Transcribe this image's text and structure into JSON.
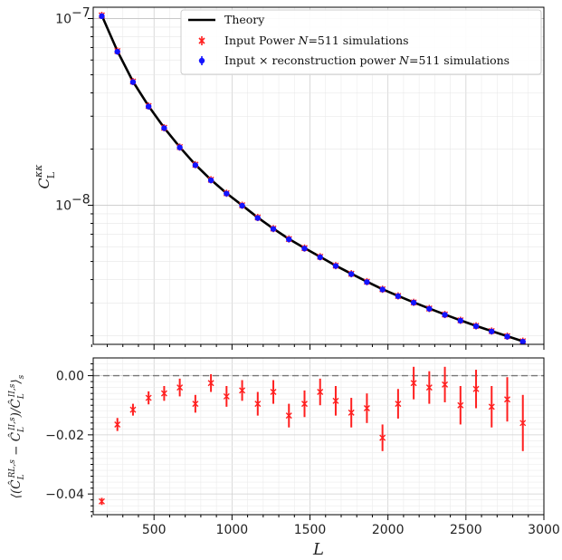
{
  "chart_data": [
    {
      "type": "scatter",
      "panel": "top",
      "yscale": "log",
      "ylim": [
        1.8e-09,
        1.15e-07
      ],
      "xlim": [
        110,
        3000
      ],
      "ylabel": "C_L^{\\kappa\\kappa}",
      "yticks": [
        {
          "value": 1e-07,
          "label": "10",
          "exp": "−7"
        },
        {
          "value": 1e-08,
          "label": "10",
          "exp": "−8"
        }
      ],
      "grid": true,
      "legend": {
        "position": "top-right",
        "entries": [
          {
            "label": "Theory",
            "style": "line",
            "color": "#000000"
          },
          {
            "label_pre": "Input Power ",
            "label_var": "N",
            "label_post": "=511 simulations",
            "style": "errorbar",
            "color": "#ff1f1f"
          },
          {
            "label_pre": "Input × reconstruction power ",
            "label_var": "N",
            "label_post": "=511 simulations",
            "style": "errorbar",
            "color": "#1414ff"
          }
        ]
      },
      "theory": {
        "x": [
          165,
          265,
          365,
          465,
          565,
          665,
          765,
          865,
          965,
          1065,
          1165,
          1265,
          1365,
          1465,
          1565,
          1665,
          1765,
          1865,
          1965,
          2065,
          2165,
          2265,
          2365,
          2465,
          2565,
          2665,
          2765,
          2865
        ],
        "y": [
          1.04e-07,
          6.7e-08,
          4.6e-08,
          3.4e-08,
          2.6e-08,
          2.05e-08,
          1.65e-08,
          1.37e-08,
          1.16e-08,
          1e-08,
          8.6e-09,
          7.5e-09,
          6.6e-09,
          5.9e-09,
          5.3e-09,
          4.75e-09,
          4.3e-09,
          3.9e-09,
          3.55e-09,
          3.27e-09,
          3.02e-09,
          2.8e-09,
          2.6e-09,
          2.42e-09,
          2.26e-09,
          2.12e-09,
          1.99e-09,
          1.87e-09
        ]
      },
      "series": [
        {
          "name": "Input Power N=511 simulations",
          "color": "#ff1f1f",
          "x": [
            165,
            265,
            365,
            465,
            565,
            665,
            765,
            865,
            965,
            1065,
            1165,
            1265,
            1365,
            1465,
            1565,
            1665,
            1765,
            1865,
            1965,
            2065,
            2165,
            2265,
            2365,
            2465,
            2565,
            2665,
            2765,
            2865
          ],
          "y": [
            1.04e-07,
            6.7e-08,
            4.6e-08,
            3.4e-08,
            2.6e-08,
            2.05e-08,
            1.65e-08,
            1.37e-08,
            1.16e-08,
            1e-08,
            8.6e-09,
            7.5e-09,
            6.6e-09,
            5.9e-09,
            5.3e-09,
            4.75e-09,
            4.3e-09,
            3.9e-09,
            3.55e-09,
            3.27e-09,
            3.02e-09,
            2.8e-09,
            2.6e-09,
            2.42e-09,
            2.26e-09,
            2.12e-09,
            1.99e-09,
            1.87e-09
          ]
        },
        {
          "name": "Input × reconstruction power N=511 simulations",
          "color": "#1414ff",
          "x": [
            165,
            265,
            365,
            465,
            565,
            665,
            765,
            865,
            965,
            1065,
            1165,
            1265,
            1365,
            1465,
            1565,
            1665,
            1765,
            1865,
            1965,
            2065,
            2165,
            2265,
            2365,
            2465,
            2565,
            2665,
            2765,
            2865
          ],
          "y": [
            1.03e-07,
            6.65e-08,
            4.57e-08,
            3.38e-08,
            2.59e-08,
            2.04e-08,
            1.64e-08,
            1.36e-08,
            1.155e-08,
            9.95e-09,
            8.55e-09,
            7.47e-09,
            6.57e-09,
            5.87e-09,
            5.27e-09,
            4.73e-09,
            4.28e-09,
            3.88e-09,
            3.54e-09,
            3.26e-09,
            3.01e-09,
            2.79e-09,
            2.59e-09,
            2.41e-09,
            2.25e-09,
            2.11e-09,
            1.98e-09,
            1.86e-09
          ]
        }
      ]
    },
    {
      "type": "scatter",
      "panel": "bottom",
      "xlabel": "L",
      "ylabel": "⟨(Ĉ_L^{RL,s} − Ĉ_L^{II,s})/Ĉ_L^{II,s}⟩_s",
      "xlim": [
        110,
        3000
      ],
      "ylim": [
        -0.047,
        0.006
      ],
      "xticks": [
        500,
        1000,
        1500,
        2000,
        2500,
        3000
      ],
      "yticks": [
        0.0,
        -0.02,
        -0.04
      ],
      "ytick_labels": [
        "0.00",
        "−0.02",
        "−0.04"
      ],
      "reference_line": 0,
      "grid": true,
      "series": [
        {
          "name": "Input Power N=511 simulations",
          "color": "#ff1f1f",
          "x": [
            165,
            265,
            365,
            465,
            565,
            665,
            765,
            865,
            965,
            1065,
            1165,
            1265,
            1365,
            1465,
            1565,
            1665,
            1765,
            1865,
            1965,
            2065,
            2165,
            2265,
            2365,
            2465,
            2565,
            2665,
            2765,
            2865
          ],
          "y": [
            -0.0425,
            -0.0165,
            -0.0115,
            -0.0075,
            -0.006,
            -0.004,
            -0.0095,
            -0.0025,
            -0.007,
            -0.005,
            -0.0095,
            -0.0055,
            -0.0135,
            -0.0095,
            -0.0055,
            -0.0085,
            -0.0125,
            -0.011,
            -0.021,
            -0.0095,
            -0.0025,
            -0.004,
            -0.003,
            -0.01,
            -0.0045,
            -0.0105,
            -0.008,
            -0.016
          ],
          "yerr": [
            0.0012,
            0.0022,
            0.002,
            0.0022,
            0.0025,
            0.003,
            0.003,
            0.003,
            0.0035,
            0.0035,
            0.004,
            0.004,
            0.004,
            0.0045,
            0.0045,
            0.005,
            0.005,
            0.005,
            0.0045,
            0.005,
            0.0055,
            0.0055,
            0.006,
            0.0065,
            0.0065,
            0.007,
            0.0075,
            0.0095
          ]
        }
      ]
    }
  ]
}
